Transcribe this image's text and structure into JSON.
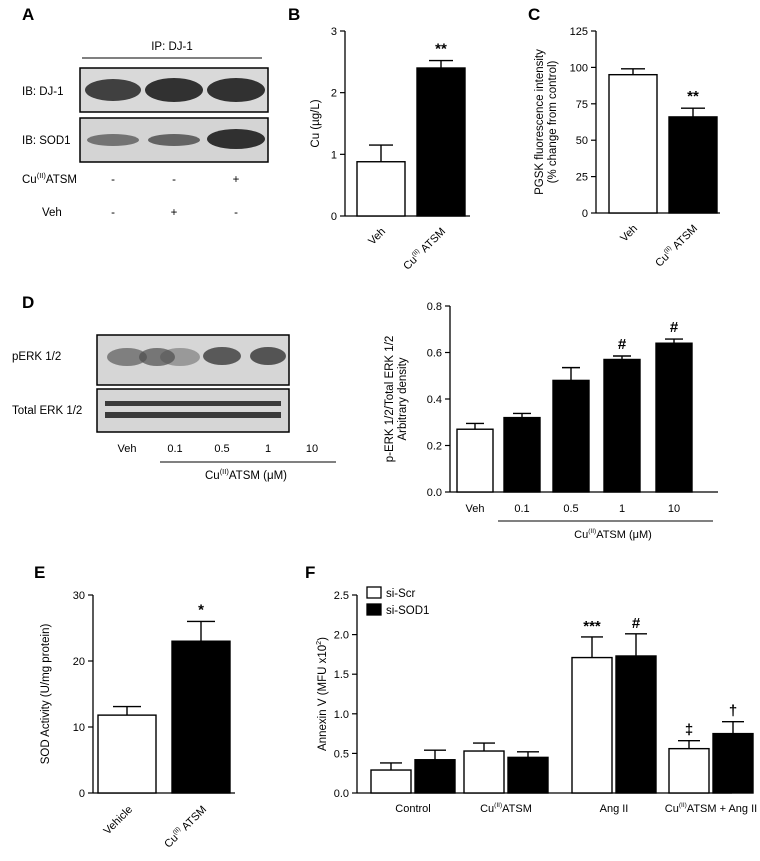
{
  "panels": {
    "A": "A",
    "B": "B",
    "C": "C",
    "D": "D",
    "E": "E",
    "F": "F"
  },
  "blotA": {
    "ip_label": "IP:  DJ-1",
    "rows": [
      "IB: DJ-1",
      "IB: SOD1"
    ],
    "conditions": [
      {
        "label": "ATSM",
        "label_prefix": "Cu",
        "label_sup": "(II)",
        "signs": [
          "-",
          "-",
          "+"
        ]
      },
      {
        "label": "Veh",
        "signs": [
          "-",
          "+",
          "-"
        ]
      }
    ]
  },
  "blotD": {
    "rows": [
      "pERK 1/2",
      "Total ERK 1/2"
    ],
    "lanes": [
      "Veh",
      "0.1",
      "0.5",
      "1",
      "10"
    ],
    "group_label": "ATSM (μM)",
    "group_prefix": "Cu",
    "group_sup": "(II)"
  },
  "colors": {
    "white_bar": "#ffffff",
    "black_bar": "#000000",
    "axis": "#000000",
    "blot_bg": "#d9d9d9",
    "band": "#2a2a2a"
  },
  "chart_data": [
    {
      "id": "B",
      "type": "bar",
      "categories": [
        "Veh",
        "ATSM"
      ],
      "category_prefix": [
        "",
        "Cu"
      ],
      "category_sup": [
        "",
        "(II)"
      ],
      "values": [
        0.88,
        2.4
      ],
      "errors": [
        0.27,
        0.12
      ],
      "fills": [
        "white",
        "black"
      ],
      "annotations": [
        "",
        "**"
      ],
      "ylabel": "Cu (µg/L)",
      "ylim": [
        0,
        3
      ],
      "yticks": [
        "0",
        "1",
        "2",
        "3"
      ]
    },
    {
      "id": "C",
      "type": "bar",
      "categories": [
        "Veh",
        "ATSM"
      ],
      "category_prefix": [
        "",
        "Cu"
      ],
      "category_sup": [
        "",
        "(II)"
      ],
      "values": [
        95,
        66
      ],
      "errors": [
        4,
        6
      ],
      "fills": [
        "white",
        "black"
      ],
      "annotations": [
        "",
        "**"
      ],
      "ylabel": [
        "PGSK fluorescence intensity",
        "(% change from control)"
      ],
      "ylim": [
        0,
        125
      ],
      "yticks": [
        "0",
        "25",
        "50",
        "75",
        "100",
        "125"
      ]
    },
    {
      "id": "D",
      "type": "bar",
      "categories": [
        "Veh",
        "0.1",
        "0.5",
        "1",
        "10"
      ],
      "values": [
        0.27,
        0.32,
        0.48,
        0.57,
        0.64
      ],
      "errors": [
        0.025,
        0.018,
        0.055,
        0.015,
        0.018
      ],
      "fills": [
        "white",
        "black",
        "black",
        "black",
        "black"
      ],
      "annotations": [
        "",
        "",
        "",
        "#",
        "#"
      ],
      "ylabel": [
        "p-ERK 1/2/Total ERK 1/2",
        "Arbitrary density"
      ],
      "ylim": [
        0,
        0.8
      ],
      "yticks": [
        "0.0",
        "0.2",
        "0.4",
        "0.6",
        "0.8"
      ],
      "group_label": "ATSM (μM)",
      "group_prefix": "Cu",
      "group_sup": "(II)"
    },
    {
      "id": "E",
      "type": "bar",
      "categories": [
        "Vehicle",
        "ATSM"
      ],
      "category_prefix": [
        "",
        "Cu"
      ],
      "category_sup": [
        "",
        "(II)"
      ],
      "values": [
        11.8,
        23
      ],
      "errors": [
        1.3,
        3
      ],
      "fills": [
        "white",
        "black"
      ],
      "annotations": [
        "",
        "*"
      ],
      "ylabel": "SOD Activity (U/mg protein)",
      "ylim": [
        0,
        30
      ],
      "yticks": [
        "0",
        "10",
        "20",
        "30"
      ]
    },
    {
      "id": "F",
      "type": "bar",
      "categories": [
        "Control",
        "ATSM",
        "Ang II",
        "ATSM + Ang II"
      ],
      "category_prefix": [
        "",
        "Cu",
        "",
        "Cu"
      ],
      "category_sup": [
        "",
        "(II)",
        "",
        "(II)"
      ],
      "series": [
        {
          "name": "si-Scr",
          "fill": "white",
          "values": [
            0.29,
            0.53,
            1.71,
            0.56
          ],
          "errors": [
            0.09,
            0.1,
            0.26,
            0.1
          ],
          "annotations": [
            "",
            "",
            "***",
            "‡"
          ]
        },
        {
          "name": "si-SOD1",
          "fill": "black",
          "values": [
            0.42,
            0.45,
            1.73,
            0.75
          ],
          "errors": [
            0.12,
            0.07,
            0.28,
            0.15
          ],
          "annotations": [
            "",
            "",
            "#",
            "†"
          ]
        }
      ],
      "ylabel": "Annexin V (MFU x10",
      "ylabel_sup": "2",
      "ylabel_close": ")",
      "ylim": [
        0,
        2.5
      ],
      "yticks": [
        "0.0",
        "0.5",
        "1.0",
        "1.5",
        "2.0",
        "2.5"
      ],
      "legend_position": "top-left"
    }
  ]
}
